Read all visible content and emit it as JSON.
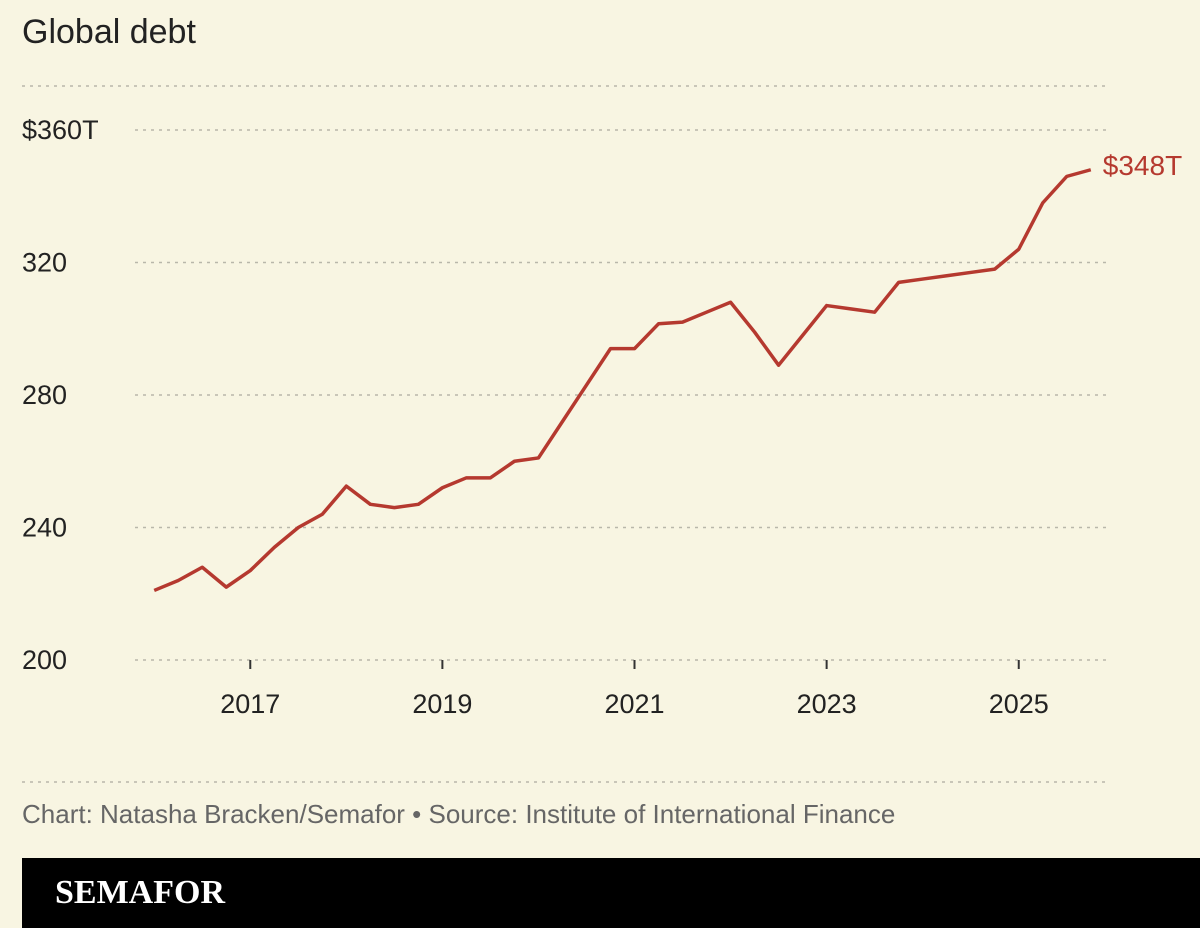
{
  "chart_data": {
    "type": "line",
    "title": "Global debt",
    "x": [
      2016,
      2016.25,
      2016.5,
      2016.75,
      2017,
      2017.25,
      2017.5,
      2017.75,
      2018,
      2018.25,
      2018.5,
      2018.75,
      2019,
      2019.25,
      2019.5,
      2019.75,
      2020,
      2020.25,
      2020.5,
      2020.75,
      2021,
      2021.25,
      2021.5,
      2021.75,
      2022,
      2022.25,
      2022.5,
      2022.75,
      2023,
      2023.25,
      2023.5,
      2023.75,
      2024,
      2024.25,
      2024.5,
      2024.75,
      2025,
      2025.25,
      2025.5,
      2025.75
    ],
    "series": [
      {
        "name": "Global debt",
        "color": "#b5392f",
        "values": [
          221,
          224,
          228,
          222,
          227,
          234,
          240,
          244,
          252.5,
          247,
          246,
          247,
          252,
          255,
          255,
          260,
          261,
          272,
          283,
          294,
          294,
          301.5,
          302,
          305,
          308,
          299,
          289,
          298,
          307,
          306,
          305,
          314,
          315,
          316,
          317,
          318,
          324,
          338,
          346,
          348
        ],
        "value_labels": [
          null,
          null,
          null,
          null,
          null,
          null,
          null,
          null,
          null,
          null,
          null,
          null,
          null,
          null,
          null,
          null,
          null,
          null,
          null,
          null,
          null,
          null,
          null,
          null,
          null,
          null,
          null,
          null,
          null,
          null,
          null,
          null,
          null,
          null,
          null,
          null,
          null,
          null,
          null,
          "$348T"
        ]
      }
    ],
    "xlim": [
      2015.8,
      2025.95
    ],
    "xticks": [
      2017,
      2019,
      2021,
      2023,
      2025
    ],
    "ylim": [
      200,
      360
    ],
    "yticks": [
      200,
      240,
      280,
      320,
      {
        "value": 360,
        "label": "$360T"
      }
    ],
    "grid": true,
    "credit": "Chart: Natasha Bracken/Semafor • Source: Institute of International Finance",
    "brand": "SEMAFOR"
  }
}
